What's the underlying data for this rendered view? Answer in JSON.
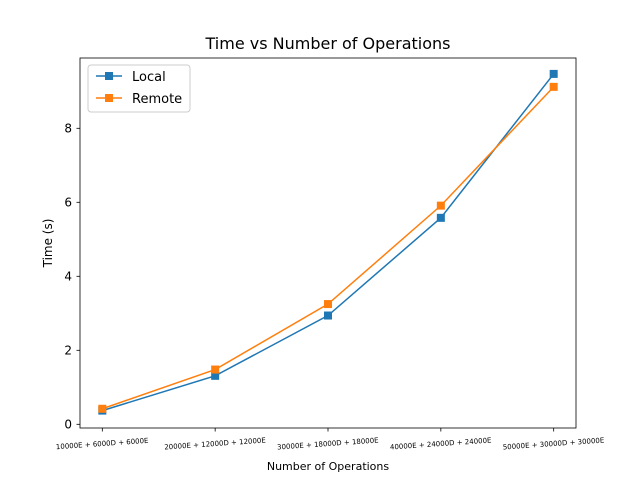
{
  "chart_data": {
    "type": "line",
    "title": "Time vs Number of Operations",
    "xlabel": "Number of Operations",
    "ylabel": "Time (s)",
    "categories": [
      "10000E + 6000D + 6000E",
      "20000E + 12000D + 12000E",
      "30000E + 18000D + 18000E",
      "40000E + 24000D + 24000E",
      "50000E + 30000D + 30000E"
    ],
    "ylim": [
      -0.1,
      9.9
    ],
    "yticks": [
      0,
      2,
      4,
      6,
      8
    ],
    "grid": false,
    "legend_position": "top-left",
    "series": [
      {
        "name": "Local",
        "color": "#1f77b4",
        "marker": "square",
        "values": [
          0.37,
          1.31,
          2.94,
          5.58,
          9.47
        ]
      },
      {
        "name": "Remote",
        "color": "#ff7f0e",
        "marker": "square",
        "values": [
          0.42,
          1.48,
          3.25,
          5.91,
          9.12
        ]
      }
    ]
  }
}
